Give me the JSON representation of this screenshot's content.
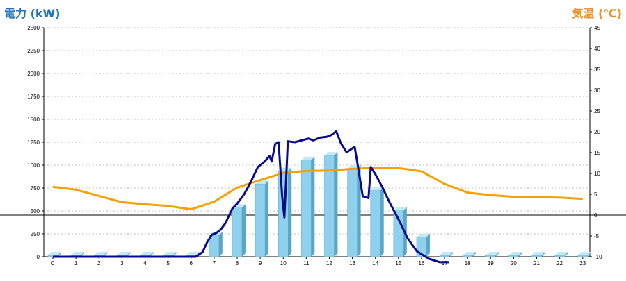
{
  "chart_data": {
    "type": "bar",
    "title_left": "電力 (kW)",
    "title_right": "気温 (℃)",
    "colors": {
      "title_left": "#1e73b8",
      "title_right": "#f08c1e",
      "bar_face": "#8fd1ec",
      "bar_side": "#5aa6c8",
      "bar_top": "#c3e9f7",
      "power_line": "#0a0a8c",
      "temp_line": "#f5a000",
      "grid": "#bdbdbd"
    },
    "categories": [
      "0",
      "1",
      "2",
      "3",
      "4",
      "5",
      "6",
      "7",
      "8",
      "9",
      "10",
      "11",
      "12",
      "13",
      "14",
      "15",
      "16",
      "17",
      "18",
      "19",
      "20",
      "21",
      "22",
      "23"
    ],
    "y_left": {
      "min": 0,
      "max": 2500,
      "ticks": [
        "0",
        "250",
        "500",
        "750",
        "1000",
        "1250",
        "1500",
        "1750",
        "2000",
        "2250",
        "2500"
      ]
    },
    "y_right": {
      "min": -10,
      "max": 45,
      "ticks": [
        "-10",
        "-5",
        "0",
        "5",
        "10",
        "15",
        "20",
        "25",
        "30",
        "35",
        "40",
        "45"
      ]
    },
    "grid": true,
    "series": [
      {
        "kind": "bar",
        "axis": "left",
        "values": [
          0,
          0,
          0,
          0,
          0,
          0,
          0,
          220,
          520,
          780,
          920,
          1040,
          1090,
          950,
          710,
          490,
          200,
          0,
          0,
          0,
          0,
          0,
          0,
          0
        ]
      },
      {
        "kind": "line",
        "axis": "left",
        "points": [
          [
            0,
            0
          ],
          [
            6.2,
            0
          ],
          [
            6.5,
            50
          ],
          [
            6.7,
            160
          ],
          [
            6.9,
            240
          ],
          [
            7.1,
            260
          ],
          [
            7.3,
            300
          ],
          [
            7.5,
            370
          ],
          [
            7.8,
            530
          ],
          [
            8.0,
            580
          ],
          [
            8.3,
            680
          ],
          [
            8.6,
            820
          ],
          [
            8.9,
            980
          ],
          [
            9.2,
            1040
          ],
          [
            9.4,
            1100
          ],
          [
            9.5,
            1040
          ],
          [
            9.65,
            1230
          ],
          [
            9.8,
            1250
          ],
          [
            9.95,
            670
          ],
          [
            10.05,
            430
          ],
          [
            10.2,
            1260
          ],
          [
            10.5,
            1250
          ],
          [
            10.8,
            1270
          ],
          [
            11.1,
            1290
          ],
          [
            11.3,
            1270
          ],
          [
            11.6,
            1300
          ],
          [
            11.9,
            1310
          ],
          [
            12.1,
            1330
          ],
          [
            12.3,
            1370
          ],
          [
            12.5,
            1240
          ],
          [
            12.75,
            1140
          ],
          [
            13.1,
            1200
          ],
          [
            13.3,
            900
          ],
          [
            13.45,
            660
          ],
          [
            13.7,
            640
          ],
          [
            13.8,
            980
          ],
          [
            14.0,
            900
          ],
          [
            14.3,
            760
          ],
          [
            14.6,
            600
          ],
          [
            15.0,
            410
          ],
          [
            15.4,
            200
          ],
          [
            15.8,
            60
          ],
          [
            16.3,
            -20
          ],
          [
            16.8,
            -60
          ],
          [
            17.2,
            -60
          ]
        ]
      },
      {
        "kind": "line",
        "axis": "right",
        "points": [
          [
            0,
            6.8
          ],
          [
            1,
            6.1
          ],
          [
            2,
            4.6
          ],
          [
            3,
            3.1
          ],
          [
            4,
            2.6
          ],
          [
            5,
            2.2
          ],
          [
            6,
            1.4
          ],
          [
            7,
            3.2
          ],
          [
            8,
            6.6
          ],
          [
            9,
            8.4
          ],
          [
            10,
            10.1
          ],
          [
            11,
            10.6
          ],
          [
            12,
            10.7
          ],
          [
            13,
            11.1
          ],
          [
            14,
            11.4
          ],
          [
            15,
            11.3
          ],
          [
            16,
            10.5
          ],
          [
            17,
            7.5
          ],
          [
            18,
            5.4
          ],
          [
            19,
            4.8
          ],
          [
            20,
            4.4
          ],
          [
            21,
            4.3
          ],
          [
            22,
            4.2
          ],
          [
            23,
            3.9
          ]
        ]
      }
    ]
  }
}
